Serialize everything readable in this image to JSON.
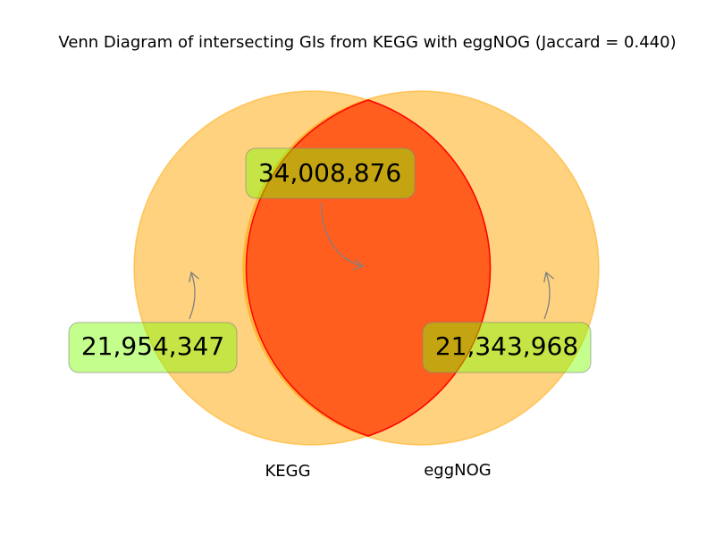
{
  "title": "Venn Diagram of intersecting GIs from KEGG with eggNOG (Jaccard = 0.440)",
  "sets": {
    "left": {
      "label": "KEGG",
      "only_count": "21,954,347"
    },
    "right": {
      "label": "eggNOG",
      "only_count": "21,343,968"
    }
  },
  "intersection": {
    "count": "34,008,876"
  },
  "colors": {
    "set_fill": "#ffa500",
    "intersection_fill": "#ff0000",
    "callout_fill": "#7cfc00",
    "arrow": "#808080"
  }
}
